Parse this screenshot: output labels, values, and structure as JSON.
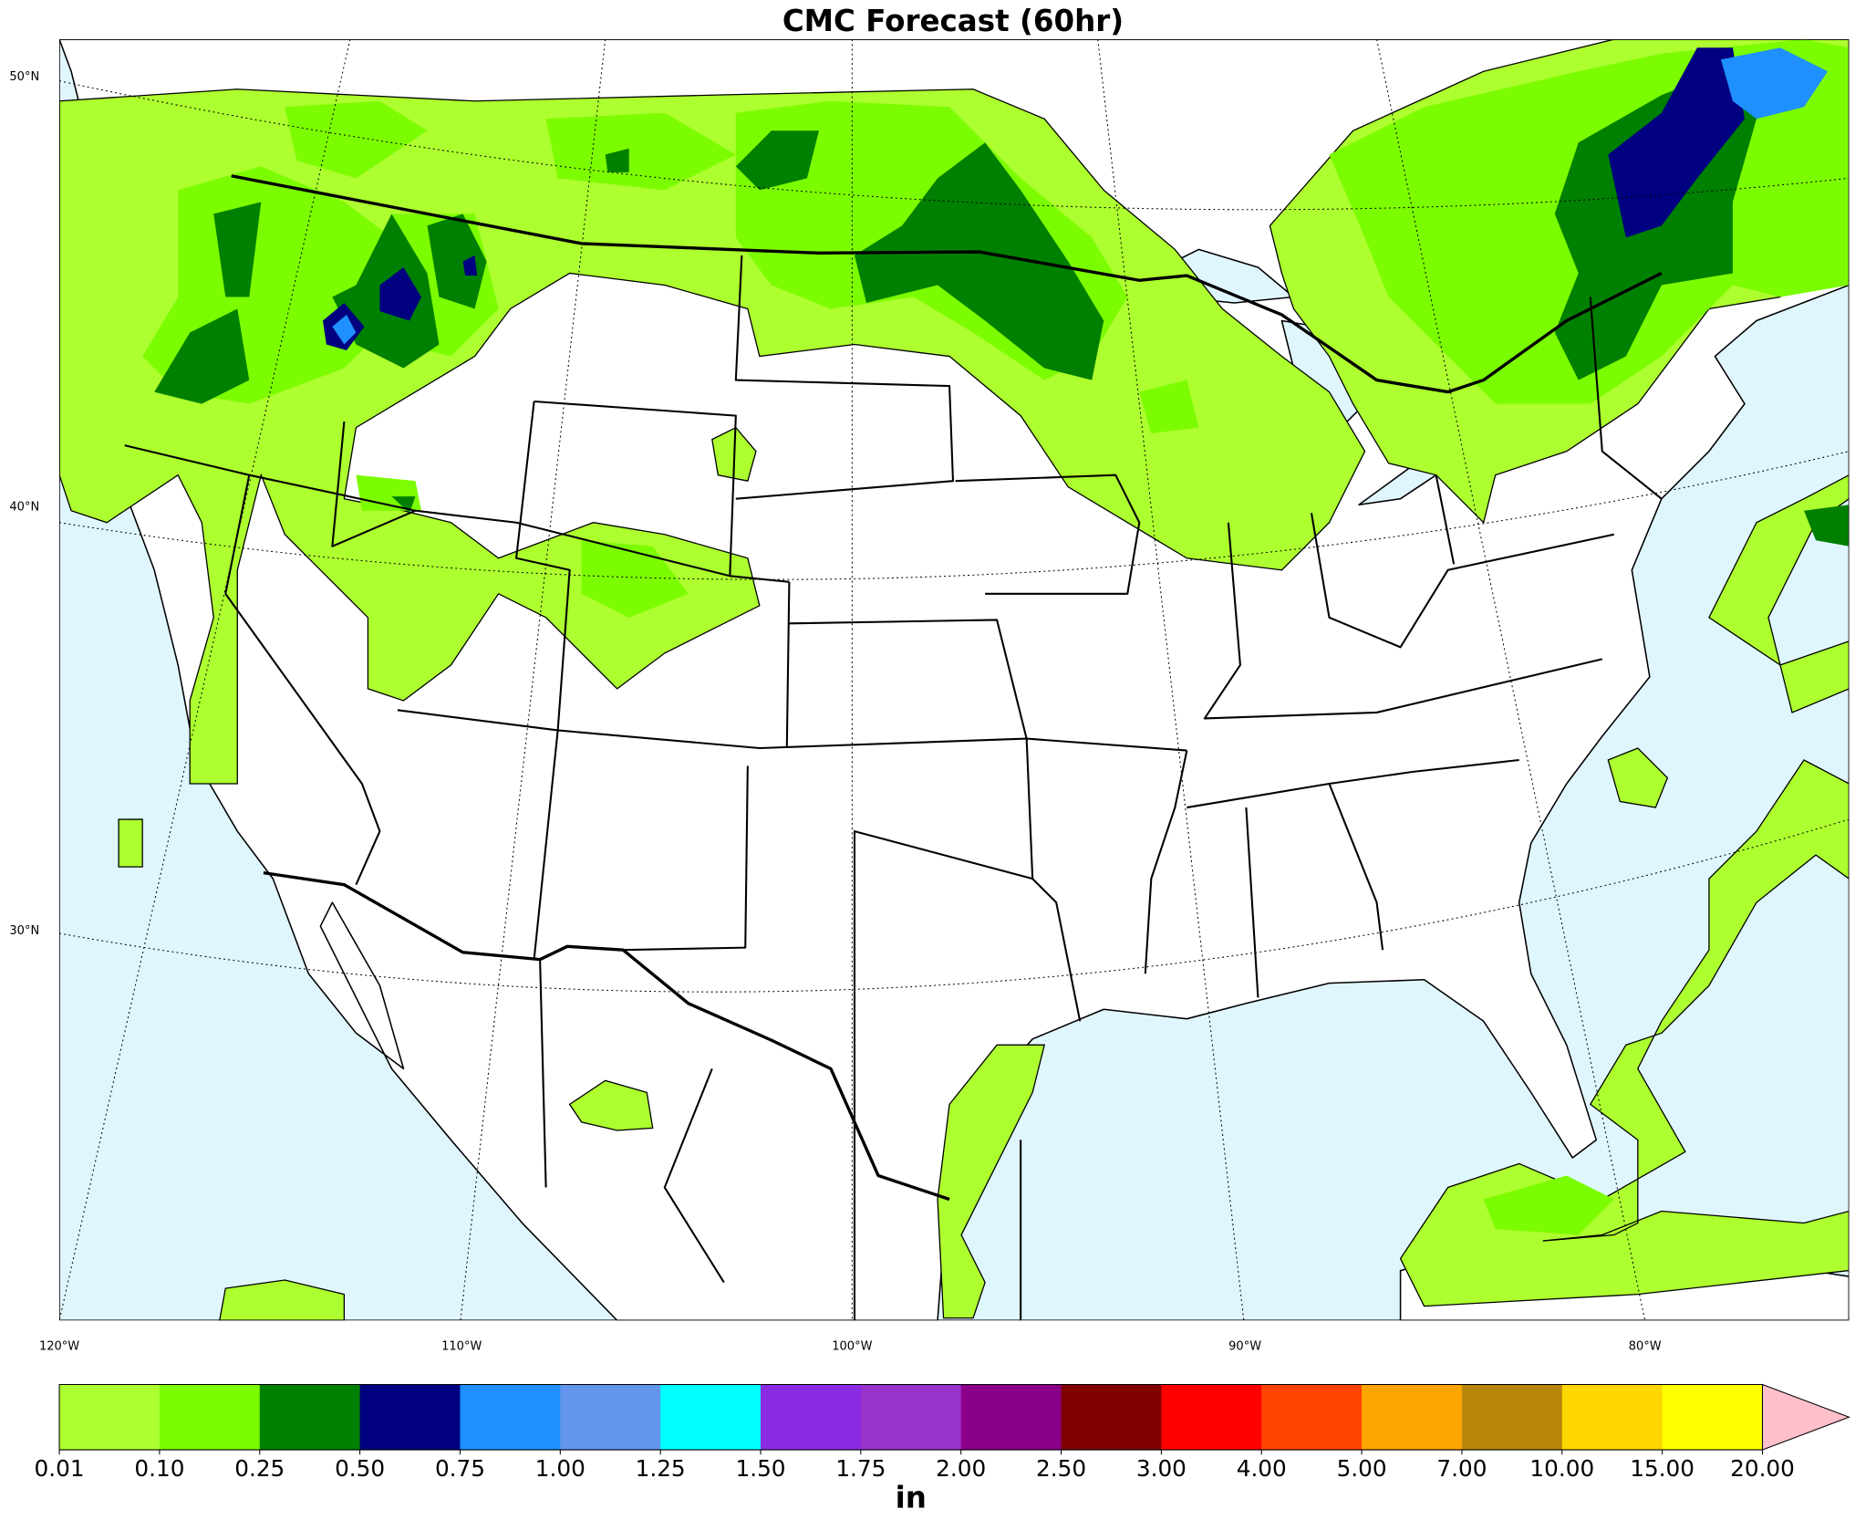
{
  "header": {
    "title": "CMC Forecast (60hr)"
  },
  "map": {
    "lat_labels": [
      "50°N",
      "40°N",
      "30°N"
    ],
    "lon_labels": [
      "120°W",
      "110°W",
      "100°W",
      "90°W",
      "80°W"
    ]
  },
  "colorbar": {
    "ticks": [
      "0.01",
      "0.10",
      "0.25",
      "0.50",
      "0.75",
      "1.00",
      "1.25",
      "1.50",
      "1.75",
      "2.00",
      "2.50",
      "3.00",
      "4.00",
      "5.00",
      "7.00",
      "10.00",
      "15.00",
      "20.00"
    ],
    "colors": [
      "#adff2f",
      "#7cfc00",
      "#008000",
      "#000080",
      "#1e90ff",
      "#6495ed",
      "#00ffff",
      "#8a2be2",
      "#9932cc",
      "#8b008b",
      "#800000",
      "#ff0000",
      "#ff4500",
      "#ffa500",
      "#b8860b",
      "#ffd700",
      "#ffff00"
    ],
    "extend_color": "#ffc0cb",
    "unit": "in"
  }
}
